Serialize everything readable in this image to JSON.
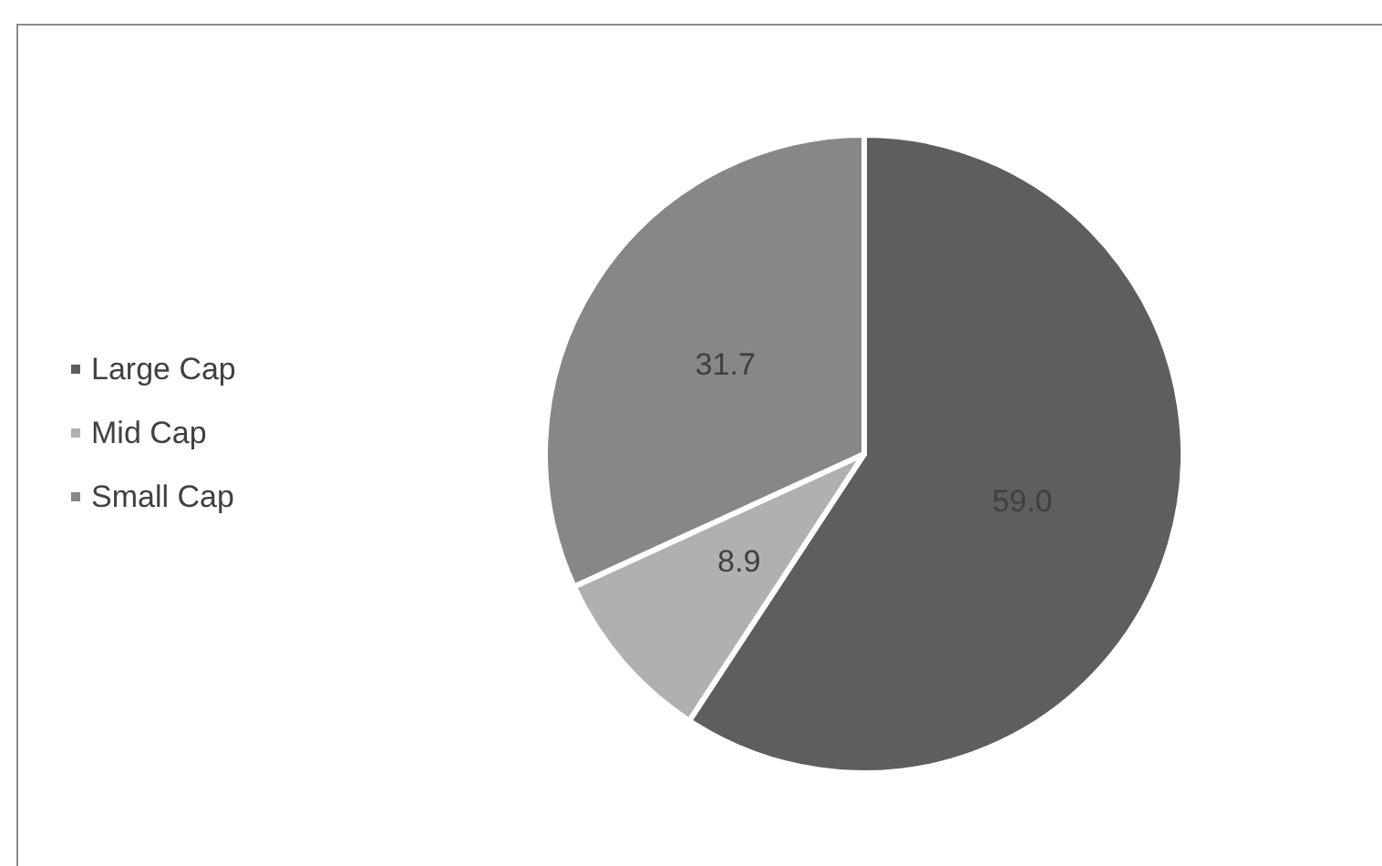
{
  "chart_data": {
    "type": "pie",
    "categories": [
      "Large Cap",
      "Mid Cap",
      "Small Cap"
    ],
    "values": [
      59.0,
      8.9,
      31.7
    ],
    "colors": [
      "#5e5e5e",
      "#b0b0b0",
      "#878787"
    ],
    "value_labels": [
      "59.0",
      "8.9",
      "31.7"
    ],
    "legend": "left"
  }
}
